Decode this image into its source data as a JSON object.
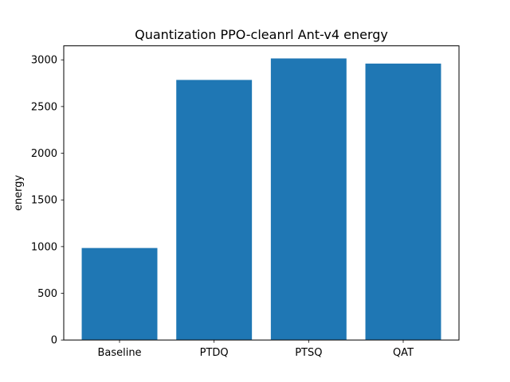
{
  "chart_data": {
    "type": "bar",
    "title": "Quantization PPO-cleanrl Ant-v4 energy",
    "xlabel": "",
    "ylabel": "energy",
    "categories": [
      "Baseline",
      "PTDQ",
      "PTSQ",
      "QAT"
    ],
    "values": [
      985,
      2785,
      3015,
      2960
    ],
    "ylim": [
      0,
      3150
    ],
    "yticks": [
      0,
      500,
      1000,
      1500,
      2000,
      2500,
      3000
    ],
    "bar_color": "#1f77b4",
    "grid": false,
    "legend": false
  }
}
